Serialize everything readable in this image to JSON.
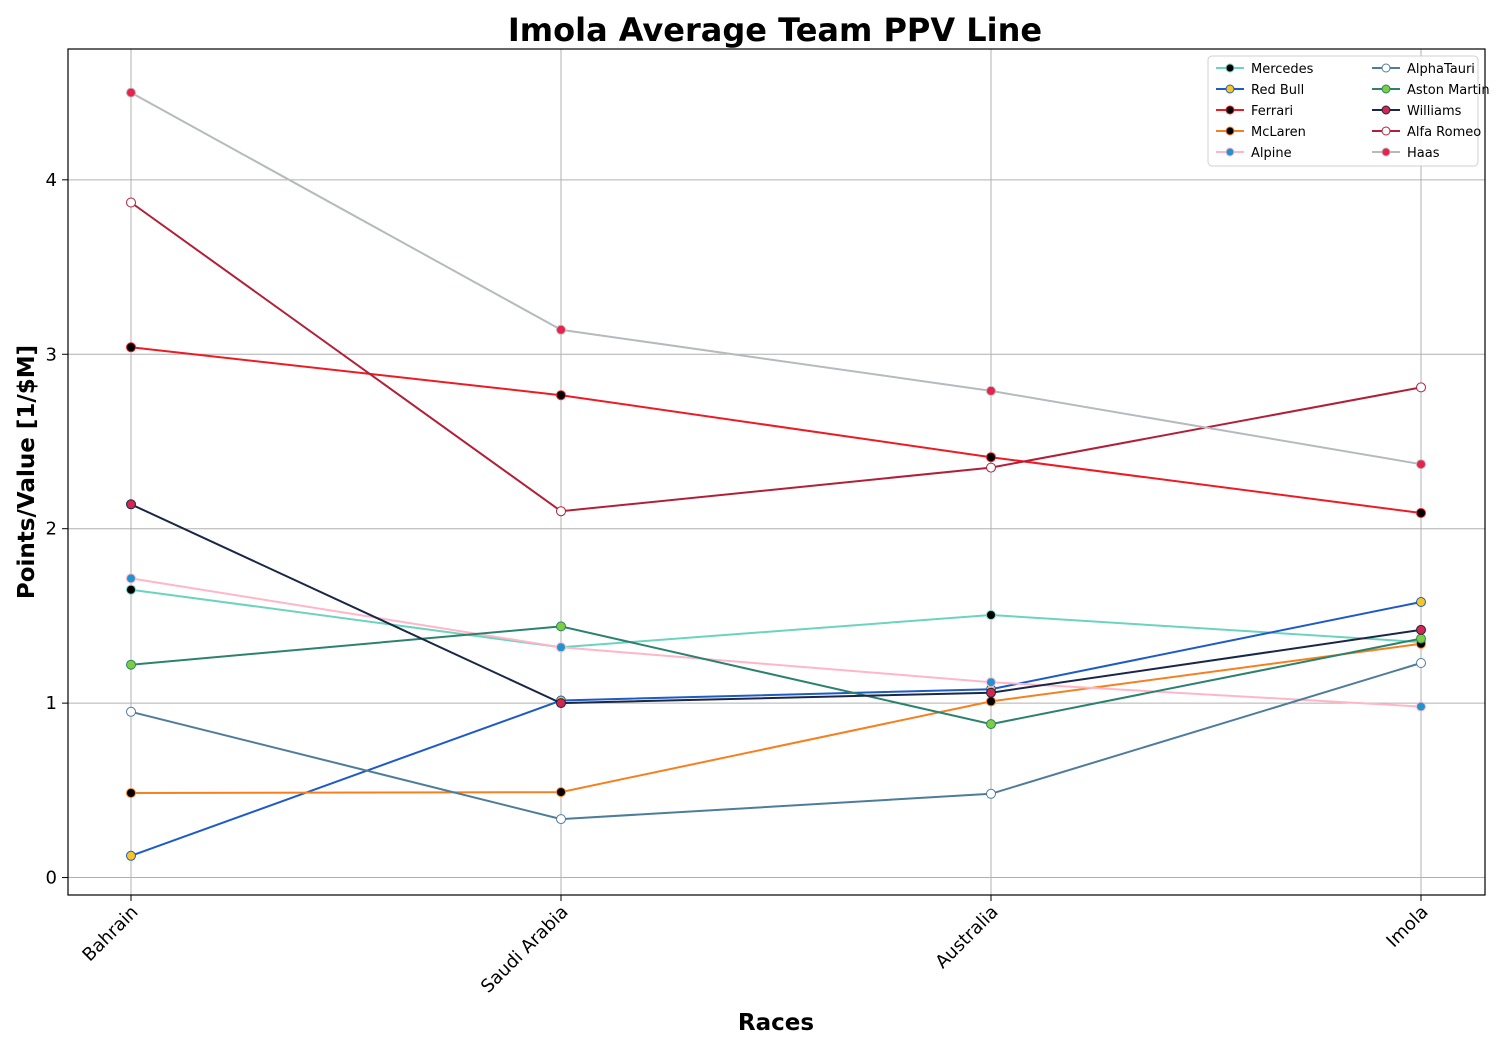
{
  "chart_data": {
    "type": "line",
    "title": "Imola Average Team PPV Line",
    "xlabel": "Races",
    "ylabel": "Points/Value [1/$M]",
    "categories": [
      "Bahrain",
      "Saudi Arabia",
      "Australia",
      "Imola"
    ],
    "ylim": [
      -0.1,
      4.75
    ],
    "yticks": [
      0,
      1,
      2,
      3,
      4
    ],
    "grid": true,
    "legend": {
      "position": "top-right",
      "columns": 2
    },
    "series": [
      {
        "name": "Mercedes",
        "values": [
          1.65,
          1.32,
          1.505,
          1.35
        ],
        "line_color": "#6CD3BF",
        "marker_fill": "#000000",
        "marker_edge": "#6CD3BF"
      },
      {
        "name": "Red Bull",
        "values": [
          0.125,
          1.015,
          1.08,
          1.58
        ],
        "line_color": "#1E5BC6",
        "marker_fill": "#F9C51F",
        "marker_edge": "#1E5BC6"
      },
      {
        "name": "Ferrari",
        "values": [
          3.04,
          2.765,
          2.41,
          2.09
        ],
        "line_color": "#ED1C24",
        "marker_fill": "#000000",
        "marker_edge": "#ED1C24"
      },
      {
        "name": "McLaren",
        "values": [
          0.485,
          0.49,
          1.01,
          1.34
        ],
        "line_color": "#F58020",
        "marker_fill": "#000000",
        "marker_edge": "#F58020"
      },
      {
        "name": "Alpine",
        "values": [
          1.715,
          1.32,
          1.12,
          0.98
        ],
        "line_color": "#FFB6C8",
        "marker_fill": "#2293D1",
        "marker_edge": "#FFB6C8"
      },
      {
        "name": "AlphaTauri",
        "values": [
          0.95,
          0.335,
          0.48,
          1.23
        ],
        "line_color": "#4E7C9B",
        "marker_fill": "#FFFFFF",
        "marker_edge": "#4E7C9B"
      },
      {
        "name": "Aston Martin",
        "values": [
          1.22,
          1.44,
          0.88,
          1.37
        ],
        "line_color": "#2D826D",
        "marker_fill": "#7CCE3F",
        "marker_edge": "#2D826D"
      },
      {
        "name": "Williams",
        "values": [
          2.14,
          1.0,
          1.06,
          1.42
        ],
        "line_color": "#1A2746",
        "marker_fill": "#D4264E",
        "marker_edge": "#1A2746"
      },
      {
        "name": "Alfa Romeo",
        "values": [
          3.87,
          2.1,
          2.35,
          2.81
        ],
        "line_color": "#B12039",
        "marker_fill": "#FFFFFF",
        "marker_edge": "#B12039"
      },
      {
        "name": "Haas",
        "values": [
          4.5,
          3.14,
          2.79,
          2.37
        ],
        "line_color": "#B6BABD",
        "marker_fill": "#E8224A",
        "marker_edge": "#B6BABD"
      }
    ]
  }
}
